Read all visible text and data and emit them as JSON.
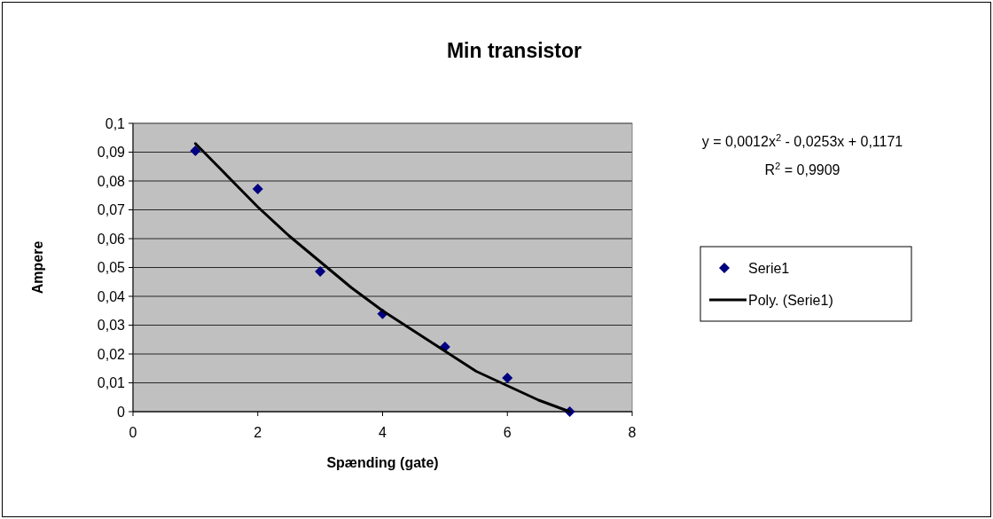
{
  "chart_data": {
    "type": "scatter",
    "title": "Min transistor",
    "xlabel": "Spænding (gate)",
    "ylabel": "Ampere",
    "xlim": [
      0,
      8
    ],
    "xticks": [
      0,
      2,
      4,
      6,
      8
    ],
    "ylim": [
      0,
      0.1
    ],
    "yticks": [
      {
        "value": 0,
        "label": "0"
      },
      {
        "value": 0.01,
        "label": "0,01"
      },
      {
        "value": 0.02,
        "label": "0,02"
      },
      {
        "value": 0.03,
        "label": "0,03"
      },
      {
        "value": 0.04,
        "label": "0,04"
      },
      {
        "value": 0.05,
        "label": "0,05"
      },
      {
        "value": 0.06,
        "label": "0,06"
      },
      {
        "value": 0.07,
        "label": "0,07"
      },
      {
        "value": 0.08,
        "label": "0,08"
      },
      {
        "value": 0.09,
        "label": "0,09"
      },
      {
        "value": 0.1,
        "label": "0,1"
      }
    ],
    "grid": "y",
    "legend": "right",
    "annotations": [
      "y = 0,0012x$^{2}$ - 0,0253x + 0,1171",
      "R$^{2}$ = 0,9909"
    ],
    "series": [
      {
        "name": "Serie1",
        "marker": "diamond",
        "color": "#000080",
        "x": [
          1,
          2,
          3,
          4,
          5,
          6,
          7
        ],
        "values": [
          0.0905,
          0.0772,
          0.0486,
          0.0339,
          0.0225,
          0.0117,
          0
        ]
      },
      {
        "name": "Poly. (Serie1)",
        "type": "line",
        "line_style": "solid",
        "color": "#000000",
        "x": [
          1,
          1.5,
          2,
          2.5,
          3,
          3.5,
          4,
          4.5,
          5,
          5.5,
          6,
          6.5,
          7
        ],
        "values": [
          0.093,
          0.082,
          0.071,
          0.061,
          0.052,
          0.043,
          0.035,
          0.028,
          0.021,
          0.014,
          0.009,
          0.004,
          0
        ]
      }
    ]
  }
}
